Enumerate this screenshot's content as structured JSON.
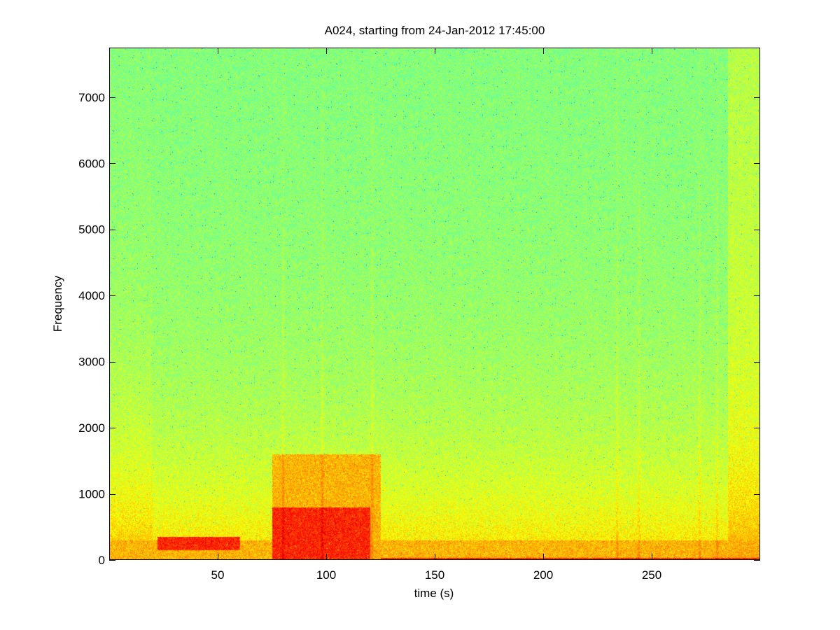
{
  "chart_data": {
    "type": "heatmap",
    "title": "A024, starting from 24-Jan-2012 17:45:00",
    "xlabel": "time (s)",
    "ylabel": "Frequency",
    "xlim": [
      0,
      300
    ],
    "ylim": [
      0,
      7750
    ],
    "xticks": [
      50,
      100,
      150,
      200,
      250
    ],
    "xtick_labels": [
      "50",
      "100",
      "150",
      "200",
      "250"
    ],
    "yticks": [
      0,
      1000,
      2000,
      3000,
      4000,
      5000,
      6000,
      7000
    ],
    "ytick_labels": [
      "0",
      "1000",
      "2000",
      "3000",
      "4000",
      "5000",
      "6000",
      "7000"
    ],
    "colormap": "jet",
    "grid": false,
    "colors": {
      "background_cyan_green": "#6cf4a0",
      "mid_yellow_green": "#c8f050",
      "high_yellow": "#ffee20",
      "peak_red": "#c83c14"
    },
    "energy_regions": [
      {
        "t_start": 0,
        "t_end": 300,
        "f_start": 0,
        "f_end": 300,
        "level": "high"
      },
      {
        "t_start": 22,
        "t_end": 60,
        "f_start": 150,
        "f_end": 350,
        "level": "peak"
      },
      {
        "t_start": 75,
        "t_end": 120,
        "f_start": 0,
        "f_end": 800,
        "level": "peak"
      },
      {
        "t_start": 75,
        "t_end": 125,
        "f_start": 0,
        "f_end": 1600,
        "level": "high"
      },
      {
        "t_start": 125,
        "t_end": 300,
        "f_start": 0,
        "f_end": 40,
        "level": "peak"
      }
    ],
    "vertical_transients": [
      80,
      98,
      121,
      234,
      244,
      272,
      280
    ]
  }
}
